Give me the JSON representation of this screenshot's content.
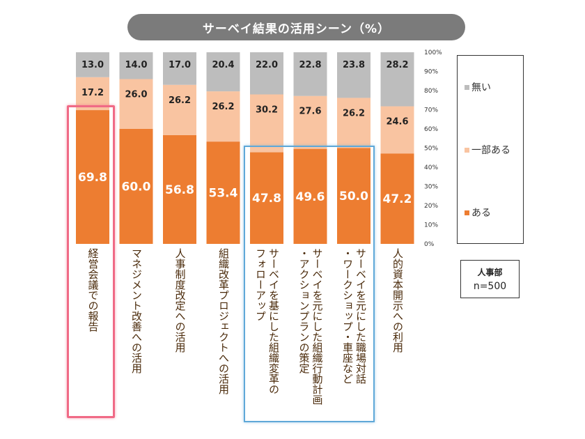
{
  "title": "サーベイ結果の活用シーン（%）",
  "colors": {
    "nai": "#bdbdbd",
    "ichibu": "#f9c4a1",
    "aru": "#ed7d31",
    "axis_text": "#333333"
  },
  "legend": {
    "items": [
      "無い",
      "一部ある",
      "ある"
    ]
  },
  "note": {
    "line1": "人事部",
    "line2": "n=500"
  },
  "chart_data": {
    "type": "bar",
    "stacked": true,
    "title": "サーベイ結果の活用シーン（%）",
    "ylim": [
      0,
      100
    ],
    "yticks": [
      "0%",
      "10%",
      "20%",
      "30%",
      "40%",
      "50%",
      "60%",
      "70%",
      "80%",
      "90%",
      "100%"
    ],
    "legend_position": "right",
    "categories": [
      "経営会議での報告",
      "マネジメント改善への活用",
      "人事制度改定への活用",
      "組織改革プロジェクトへの活用",
      "サーベイを基にした組織変革の\nフォローアップ",
      "サーベイを元にした組織行動計画\n・アクションプランの策定",
      "サーベイを元にした職場対話\n・ワークショップ・車座など",
      "人的資本開示への利用"
    ],
    "series": [
      {
        "name": "ある",
        "values": [
          69.8,
          60.0,
          56.8,
          53.4,
          47.8,
          49.6,
          50.0,
          47.2
        ]
      },
      {
        "name": "一部ある",
        "values": [
          17.2,
          26.0,
          26.2,
          26.2,
          30.2,
          27.6,
          26.2,
          24.6
        ]
      },
      {
        "name": "無い",
        "values": [
          13.0,
          14.0,
          17.0,
          20.4,
          22.0,
          22.8,
          23.8,
          28.2
        ]
      }
    ]
  }
}
